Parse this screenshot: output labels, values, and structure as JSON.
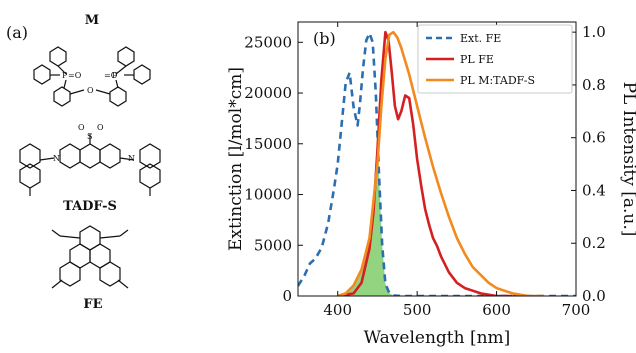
{
  "panel_a": {
    "label": "(a)",
    "molecules": [
      {
        "name": "M",
        "atoms": [
          "P",
          "=O",
          "O",
          "P",
          "=O"
        ]
      },
      {
        "name": "TADF-S",
        "atoms": [
          "O",
          "O",
          "S",
          "N",
          "N"
        ]
      },
      {
        "name": "FE"
      }
    ]
  },
  "chart_data": {
    "type": "line",
    "panel_label": "(b)",
    "xlabel": "Wavelength [nm]",
    "ylabel": "Extinction [l/mol*cm]",
    "y2label": "PL Intensity [a.u.]",
    "xlim": [
      350,
      700
    ],
    "ylim": [
      0,
      27000
    ],
    "y2lim": [
      0,
      1.0385
    ],
    "xticks": [
      400,
      500,
      600,
      700
    ],
    "yticks": [
      0,
      5000,
      10000,
      15000,
      20000,
      25000
    ],
    "y2ticks": [
      0.0,
      0.2,
      0.4,
      0.6,
      0.8,
      1.0
    ],
    "xtick_labels": [
      "400",
      "500",
      "600",
      "700"
    ],
    "ytick_labels": [
      "0",
      "5000",
      "10000",
      "15000",
      "20000",
      "25000"
    ],
    "y2tick_labels": [
      "0.0",
      "0.2",
      "0.4",
      "0.6",
      "0.8",
      "1.0"
    ],
    "grid": false,
    "legend_position": "top-right",
    "overlap_fill_color": "#7fcc6a",
    "series": [
      {
        "name": "Ext. FE",
        "axis": "left",
        "color": "#2c6fb0",
        "style": "dashed",
        "x": [
          350,
          358,
          365,
          372,
          380,
          388,
          395,
          400,
          405,
          410,
          415,
          420,
          425,
          428,
          432,
          436,
          440,
          444,
          448,
          452,
          456,
          460,
          465,
          470,
          480,
          500,
          550,
          600,
          650,
          700
        ],
        "y": [
          1000,
          2000,
          3200,
          3700,
          4800,
          7200,
          10400,
          13000,
          17000,
          21000,
          22000,
          18600,
          16800,
          19000,
          22500,
          25200,
          25900,
          25000,
          20000,
          12000,
          5000,
          1200,
          300,
          50,
          0,
          0,
          0,
          0,
          0,
          0
        ]
      },
      {
        "name": "PL FE",
        "axis": "right",
        "color": "#d42020",
        "style": "solid",
        "x": [
          400,
          420,
          430,
          440,
          445,
          450,
          455,
          460,
          464,
          468,
          472,
          476,
          480,
          485,
          490,
          495,
          500,
          505,
          510,
          515,
          520,
          525,
          530,
          540,
          550,
          560,
          570,
          580,
          600,
          620
        ],
        "y": [
          0.0,
          0.01,
          0.05,
          0.18,
          0.32,
          0.55,
          0.82,
          1.0,
          0.97,
          0.85,
          0.72,
          0.67,
          0.7,
          0.76,
          0.75,
          0.65,
          0.52,
          0.42,
          0.33,
          0.27,
          0.22,
          0.19,
          0.15,
          0.09,
          0.05,
          0.03,
          0.02,
          0.01,
          0.0,
          0.0
        ]
      },
      {
        "name": "PL M:TADF-S",
        "axis": "right",
        "color": "#f28a1e",
        "style": "solid",
        "x": [
          400,
          410,
          420,
          430,
          440,
          450,
          455,
          460,
          465,
          470,
          475,
          480,
          490,
          500,
          510,
          520,
          530,
          540,
          550,
          560,
          570,
          580,
          590,
          600,
          620,
          640,
          660
        ],
        "y": [
          0.0,
          0.01,
          0.04,
          0.1,
          0.22,
          0.5,
          0.72,
          0.9,
          0.99,
          1.0,
          0.98,
          0.94,
          0.84,
          0.72,
          0.6,
          0.49,
          0.39,
          0.3,
          0.22,
          0.16,
          0.11,
          0.08,
          0.05,
          0.03,
          0.01,
          0.0,
          0.0
        ]
      }
    ]
  }
}
